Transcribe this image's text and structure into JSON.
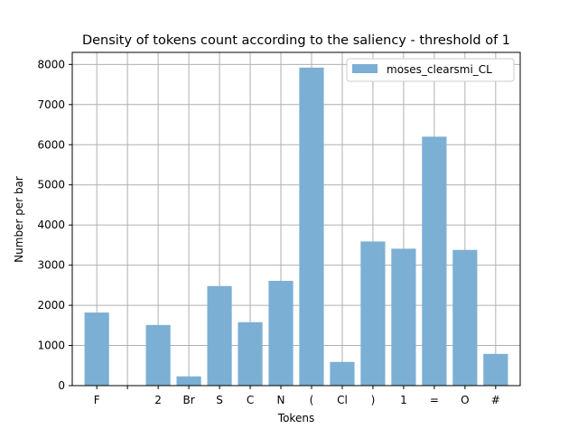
{
  "chart_data": {
    "type": "bar",
    "title": "Density of tokens count according to the saliency - threshold of 1",
    "xlabel": "Tokens",
    "ylabel": "Number per bar",
    "categories": [
      "F",
      "",
      "2",
      "Br",
      "S",
      "C",
      "N",
      "(",
      "Cl",
      ")",
      "1",
      "=",
      "O",
      "#"
    ],
    "series": [
      {
        "name": "moses_clearsmi_CL",
        "values": [
          1820,
          0,
          1510,
          230,
          2480,
          1580,
          2610,
          7920,
          590,
          3590,
          3410,
          6200,
          3380,
          790
        ],
        "color": "#7bafd4"
      }
    ],
    "ylim": [
      0,
      8300
    ],
    "yticks": [
      0,
      1000,
      2000,
      3000,
      4000,
      5000,
      6000,
      7000,
      8000
    ],
    "grid": true,
    "legend_position": "top-right"
  }
}
